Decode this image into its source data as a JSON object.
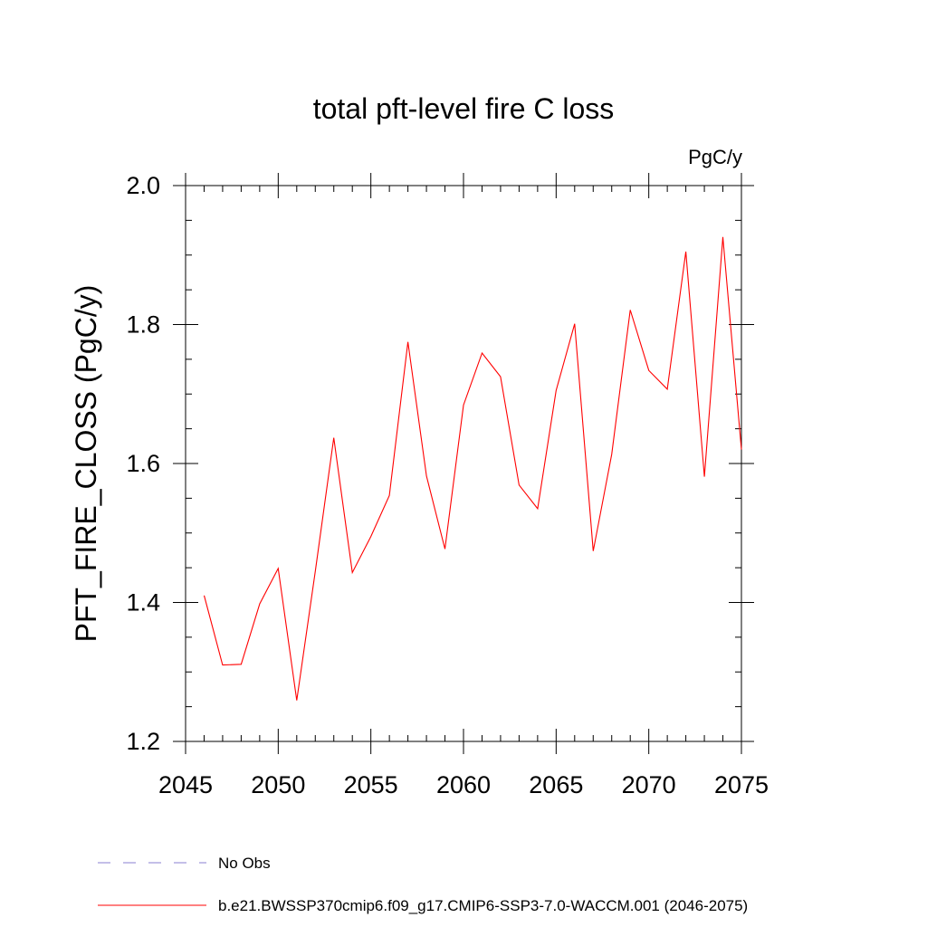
{
  "chart_data": {
    "type": "line",
    "title": "total pft-level fire C loss",
    "units_label": "PgC/y",
    "ylabel": "PFT_FIRE_CLOSS  (PgC/y)",
    "xlabel": "",
    "xlim": [
      2045,
      2075
    ],
    "ylim": [
      1.2,
      2.0
    ],
    "xticks": [
      2045,
      2050,
      2055,
      2060,
      2065,
      2070,
      2075
    ],
    "yticks": [
      1.2,
      1.4,
      1.6,
      1.8,
      2.0
    ],
    "ytick_labels": [
      "1.2",
      "1.4",
      "1.6",
      "1.8",
      "2.0"
    ],
    "grid": false,
    "series": [
      {
        "name": "b.e21.BWSSP370cmip6.f09_g17.CMIP6-SSP3-7.0-WACCM.001 (2046-2075)",
        "color": "#ff0000",
        "x": [
          2046,
          2047,
          2048,
          2049,
          2050,
          2051,
          2052,
          2053,
          2054,
          2055,
          2056,
          2057,
          2058,
          2059,
          2060,
          2061,
          2062,
          2063,
          2064,
          2065,
          2066,
          2067,
          2068,
          2069,
          2070,
          2071,
          2072,
          2073,
          2074,
          2075
        ],
        "values": [
          1.41,
          1.31,
          1.311,
          1.398,
          1.449,
          1.259,
          1.445,
          1.637,
          1.443,
          1.495,
          1.554,
          1.775,
          1.582,
          1.477,
          1.684,
          1.759,
          1.725,
          1.569,
          1.535,
          1.705,
          1.801,
          1.474,
          1.613,
          1.821,
          1.734,
          1.707,
          1.905,
          1.581,
          1.926,
          1.62
        ]
      }
    ],
    "legend": [
      {
        "label": "No Obs",
        "color": "#8a7fd0",
        "style": "dashed"
      },
      {
        "label": "b.e21.BWSSP370cmip6.f09_g17.CMIP6-SSP3-7.0-WACCM.001 (2046-2075)",
        "color": "#ff0000",
        "style": "solid"
      }
    ]
  }
}
